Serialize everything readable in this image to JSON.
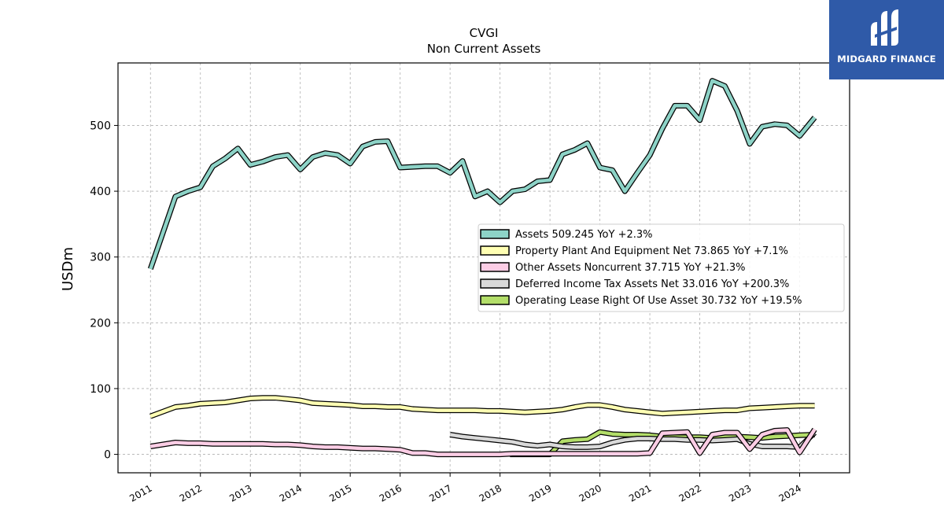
{
  "logo": {
    "text": "MIDGARD FINANCE"
  },
  "chart_data": {
    "type": "line",
    "title": "CVGI",
    "subtitle": "Non Current  Assets",
    "ylabel": "USDm",
    "xlabel": "",
    "ylim": [
      -28,
      595
    ],
    "xlim": [
      2010.35,
      2025.0
    ],
    "yticks": [
      0,
      100,
      200,
      300,
      400,
      500
    ],
    "xticks": [
      2011,
      2012,
      2013,
      2014,
      2015,
      2016,
      2017,
      2018,
      2019,
      2020,
      2021,
      2022,
      2023,
      2024
    ],
    "grid": true,
    "legend_position": "center-right",
    "series": [
      {
        "name": "Assets",
        "legend": "Assets  509.245 YoY +2.3%",
        "color": "#8dd3c7",
        "x": [
          2011.0,
          2011.5,
          2011.75,
          2012.0,
          2012.25,
          2012.5,
          2012.75,
          2013.0,
          2013.25,
          2013.5,
          2013.75,
          2014.0,
          2014.25,
          2014.5,
          2014.75,
          2015.0,
          2015.25,
          2015.5,
          2015.75,
          2016.0,
          2016.25,
          2016.5,
          2016.75,
          2017.0,
          2017.25,
          2017.5,
          2017.75,
          2018.0,
          2018.25,
          2018.5,
          2018.75,
          2019.0,
          2019.25,
          2019.5,
          2019.75,
          2020.0,
          2020.25,
          2020.5,
          2020.75,
          2021.0,
          2021.25,
          2021.5,
          2021.75,
          2022.0,
          2022.25,
          2022.5,
          2022.75,
          2023.0,
          2023.25,
          2023.5,
          2023.75,
          2024.0,
          2024.3
        ],
        "y": [
          282,
          392,
          400,
          406,
          438,
          450,
          465,
          440,
          445,
          452,
          455,
          433,
          452,
          458,
          455,
          442,
          468,
          475,
          476,
          436,
          437,
          438,
          438,
          428,
          446,
          392,
          400,
          383,
          400,
          403,
          415,
          417,
          456,
          463,
          473,
          436,
          432,
          400,
          428,
          455,
          495,
          530,
          530,
          508,
          568,
          560,
          522,
          472,
          498,
          502,
          500,
          484,
          512
        ]
      },
      {
        "name": "Property Plant And Equipment Net",
        "legend": "Property Plant And Equipment Net  73.865 YoY +7.1%",
        "color": "#ffffb3",
        "x": [
          2011.0,
          2011.5,
          2011.75,
          2012.0,
          2012.25,
          2012.5,
          2012.75,
          2013.0,
          2013.25,
          2013.5,
          2013.75,
          2014.0,
          2014.25,
          2014.5,
          2014.75,
          2015.0,
          2015.25,
          2015.5,
          2015.75,
          2016.0,
          2016.25,
          2016.5,
          2016.75,
          2017.0,
          2017.25,
          2017.5,
          2017.75,
          2018.0,
          2018.25,
          2018.5,
          2018.75,
          2019.0,
          2019.25,
          2019.5,
          2019.75,
          2020.0,
          2020.25,
          2020.5,
          2020.75,
          2021.0,
          2021.25,
          2021.5,
          2021.75,
          2022.0,
          2022.25,
          2022.5,
          2022.75,
          2023.0,
          2023.25,
          2023.5,
          2023.75,
          2024.0,
          2024.3
        ],
        "y": [
          58,
          72,
          74,
          77,
          78,
          79,
          82,
          85,
          86,
          86,
          84,
          82,
          78,
          77,
          76,
          75,
          73,
          73,
          72,
          72,
          69,
          68,
          67,
          67,
          67,
          67,
          66,
          66,
          65,
          64,
          65,
          66,
          68,
          72,
          75,
          75,
          72,
          68,
          66,
          64,
          62,
          63,
          64,
          65,
          66,
          67,
          67,
          70,
          71,
          72,
          73,
          74,
          74
        ]
      },
      {
        "name": "Other Assets Noncurrent",
        "legend": "Other Assets Noncurrent  37.715 YoY +21.3%",
        "color": "#fccde5",
        "x": [
          2011.0,
          2011.5,
          2011.75,
          2012.0,
          2012.25,
          2012.5,
          2012.75,
          2013.0,
          2013.25,
          2013.5,
          2013.75,
          2014.0,
          2014.25,
          2014.5,
          2014.75,
          2015.0,
          2015.25,
          2015.5,
          2015.75,
          2016.0,
          2016.25,
          2016.5,
          2016.75,
          2017.0,
          2017.25,
          2017.5,
          2017.75,
          2018.0,
          2018.25,
          2018.5,
          2018.75,
          2019.0,
          2019.25,
          2019.5,
          2019.75,
          2020.0,
          2020.25,
          2020.5,
          2020.75,
          2021.0,
          2021.25,
          2021.5,
          2021.75,
          2022.0,
          2022.25,
          2022.5,
          2022.75,
          2023.0,
          2023.25,
          2023.5,
          2023.75,
          2024.0,
          2024.3
        ],
        "y": [
          12,
          18,
          17,
          17,
          16,
          16,
          16,
          16,
          16,
          15,
          15,
          14,
          12,
          11,
          11,
          10,
          9,
          9,
          8,
          7,
          2,
          2,
          0,
          0,
          0,
          0,
          0,
          0,
          1,
          1,
          1,
          1,
          1,
          1,
          1,
          1,
          1,
          1,
          1,
          2,
          32,
          33,
          34,
          2,
          30,
          33,
          33,
          8,
          30,
          36,
          37,
          3,
          38
        ]
      },
      {
        "name": "Deferred Income Tax Assets Net",
        "legend": "Deferred Income Tax Assets Net  33.016 YoY +200.3%",
        "color": "#d9d9d9",
        "x": [
          2017.0,
          2017.25,
          2017.5,
          2017.75,
          2018.0,
          2018.25,
          2018.5,
          2018.75,
          2019.0,
          2019.25,
          2019.5,
          2019.75,
          2020.0,
          2020.25,
          2020.5,
          2020.75,
          2021.0,
          2021.25,
          2021.5,
          2021.75,
          2022.0,
          2022.25,
          2022.5,
          2022.75,
          2023.0,
          2023.25,
          2023.5,
          2023.75,
          2024.0,
          2024.3
        ],
        "y": [
          30,
          27,
          25,
          23,
          21,
          19,
          15,
          13,
          15,
          12,
          11,
          11,
          12,
          18,
          22,
          24,
          24,
          23,
          23,
          22,
          22,
          21,
          22,
          23,
          16,
          12,
          12,
          12,
          11,
          33
        ]
      },
      {
        "name": "Operating Lease Right Of Use Asset",
        "legend": "Operating Lease Right Of Use Asset  30.732 YoY +19.5%",
        "color": "#b3de69",
        "x": [
          2018.2,
          2018.5,
          2018.75,
          2019.0,
          2019.25,
          2019.5,
          2019.75,
          2020.0,
          2020.25,
          2020.5,
          2020.75,
          2021.0,
          2021.25,
          2021.5,
          2021.75,
          2022.0,
          2022.25,
          2022.5,
          2022.75,
          2023.0,
          2023.25,
          2023.5,
          2023.75,
          2024.0,
          2024.3
        ],
        "y": [
          0,
          0,
          0,
          0,
          20,
          22,
          23,
          34,
          31,
          30,
          30,
          29,
          27,
          26,
          26,
          26,
          25,
          27,
          27,
          26,
          25,
          27,
          28,
          29,
          30
        ]
      }
    ]
  }
}
